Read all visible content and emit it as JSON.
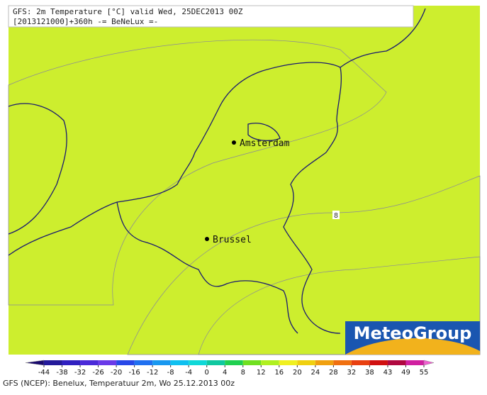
{
  "header": {
    "line1": "GFS: 2m Temperature [°C] valid Wed, 25DEC2013 00Z",
    "line2": "[2013121000]+360h -= BeNeLux =-"
  },
  "cities": [
    {
      "label": "Amsterdam"
    },
    {
      "label": "Brussel"
    }
  ],
  "contour_label": "8",
  "logo": "MeteoGroup",
  "legend": {
    "ticks": [
      -44,
      -38,
      -32,
      -26,
      -20,
      -16,
      -12,
      -8,
      -4,
      0,
      4,
      8,
      12,
      16,
      20,
      24,
      28,
      32,
      38,
      43,
      49,
      55
    ],
    "colors": [
      "#1a0a6e",
      "#241a9a",
      "#3020c0",
      "#4a2ad8",
      "#6a3ae8",
      "#2848e8",
      "#2070f0",
      "#1898f0",
      "#10c0f0",
      "#10d8d8",
      "#10c8a0",
      "#20d050",
      "#70e020",
      "#b0f020",
      "#f0f020",
      "#f0d010",
      "#f0a010",
      "#f07010",
      "#e84010",
      "#d01010",
      "#b00840",
      "#d020a0",
      "#f060d0"
    ]
  },
  "footer": "GFS (NCEP): Benelux, Temperatuur 2m, Wo 25.12.2013 00z"
}
